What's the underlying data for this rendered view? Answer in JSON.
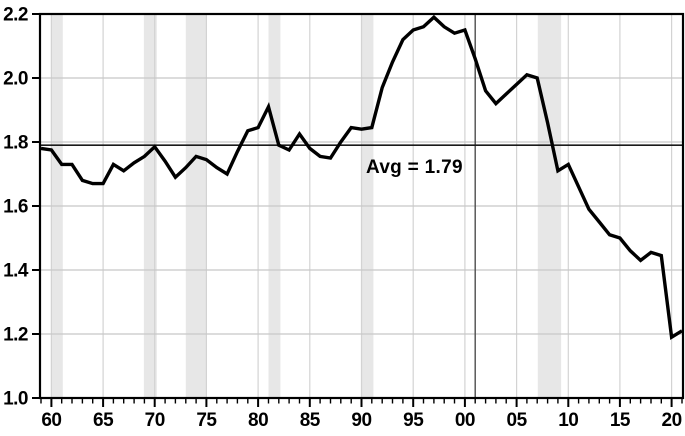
{
  "chart_data": {
    "type": "line",
    "title": "",
    "xlabel": "",
    "ylabel": "",
    "xlim": [
      1958.9,
      2021.1
    ],
    "ylim": [
      1.0,
      2.2
    ],
    "grid": true,
    "legend": "none",
    "years": [
      1959,
      1960,
      1961,
      1962,
      1963,
      1964,
      1965,
      1966,
      1967,
      1968,
      1969,
      1970,
      1971,
      1972,
      1973,
      1974,
      1975,
      1976,
      1977,
      1978,
      1979,
      1980,
      1981,
      1982,
      1983,
      1984,
      1985,
      1986,
      1987,
      1988,
      1989,
      1990,
      1991,
      1992,
      1993,
      1994,
      1995,
      1996,
      1997,
      1998,
      1999,
      2000,
      2001,
      2002,
      2003,
      2004,
      2005,
      2006,
      2007,
      2008,
      2009,
      2010,
      2011,
      2012,
      2013,
      2014,
      2015,
      2016,
      2017,
      2018,
      2019,
      2020,
      2021
    ],
    "values": [
      1.78,
      1.775,
      1.73,
      1.73,
      1.68,
      1.67,
      1.67,
      1.73,
      1.71,
      1.735,
      1.755,
      1.785,
      1.74,
      1.69,
      1.72,
      1.755,
      1.745,
      1.72,
      1.7,
      1.77,
      1.835,
      1.845,
      1.91,
      1.79,
      1.775,
      1.825,
      1.78,
      1.755,
      1.75,
      1.8,
      1.845,
      1.84,
      1.845,
      1.97,
      2.05,
      2.12,
      2.15,
      2.16,
      2.19,
      2.16,
      2.14,
      2.15,
      2.06,
      1.96,
      1.92,
      1.95,
      1.98,
      2.01,
      2.0,
      1.86,
      1.71,
      1.73,
      1.66,
      1.59,
      1.55,
      1.51,
      1.5,
      1.46,
      1.43,
      1.455,
      1.445,
      1.19,
      1.21
    ],
    "y_ticks": [
      1.0,
      1.2,
      1.4,
      1.6,
      1.8,
      2.0,
      2.2
    ],
    "y_tick_labels": [
      "1.0",
      "1.2",
      "1.4",
      "1.6",
      "1.8",
      "2.0",
      "2.2"
    ],
    "y_gridlines": [
      1.2,
      1.4,
      1.6,
      1.8,
      2.0
    ],
    "x_major_ticks": [
      1960,
      1965,
      1970,
      1975,
      1980,
      1985,
      1990,
      1995,
      2000,
      2005,
      2010,
      2015,
      2020
    ],
    "x_tick_labels": [
      "60",
      "65",
      "70",
      "75",
      "80",
      "85",
      "90",
      "95",
      "00",
      "05",
      "10",
      "15",
      "20"
    ],
    "x_minor_tick_step": 1,
    "avg_line": {
      "value": 1.79,
      "label": "Avg = 1.79"
    },
    "vline": {
      "x": 2001
    },
    "recession_bands": [
      [
        1959.95,
        1961.1
      ],
      [
        1968.95,
        1970.2
      ],
      [
        1973.0,
        1975.05
      ],
      [
        1981.0,
        1982.15
      ],
      [
        1990.0,
        1991.15
      ],
      [
        2007.05,
        2009.3
      ]
    ],
    "colors": {
      "line": "#000000",
      "avg_line": "#1a1a1a",
      "vline": "#4d4d4d",
      "band": "#e7e7e7",
      "hgrid": "#c8c8c8",
      "vgrid": "#d3d3d3",
      "axis": "#000000",
      "label": "#000000",
      "background": "#ffffff"
    }
  }
}
